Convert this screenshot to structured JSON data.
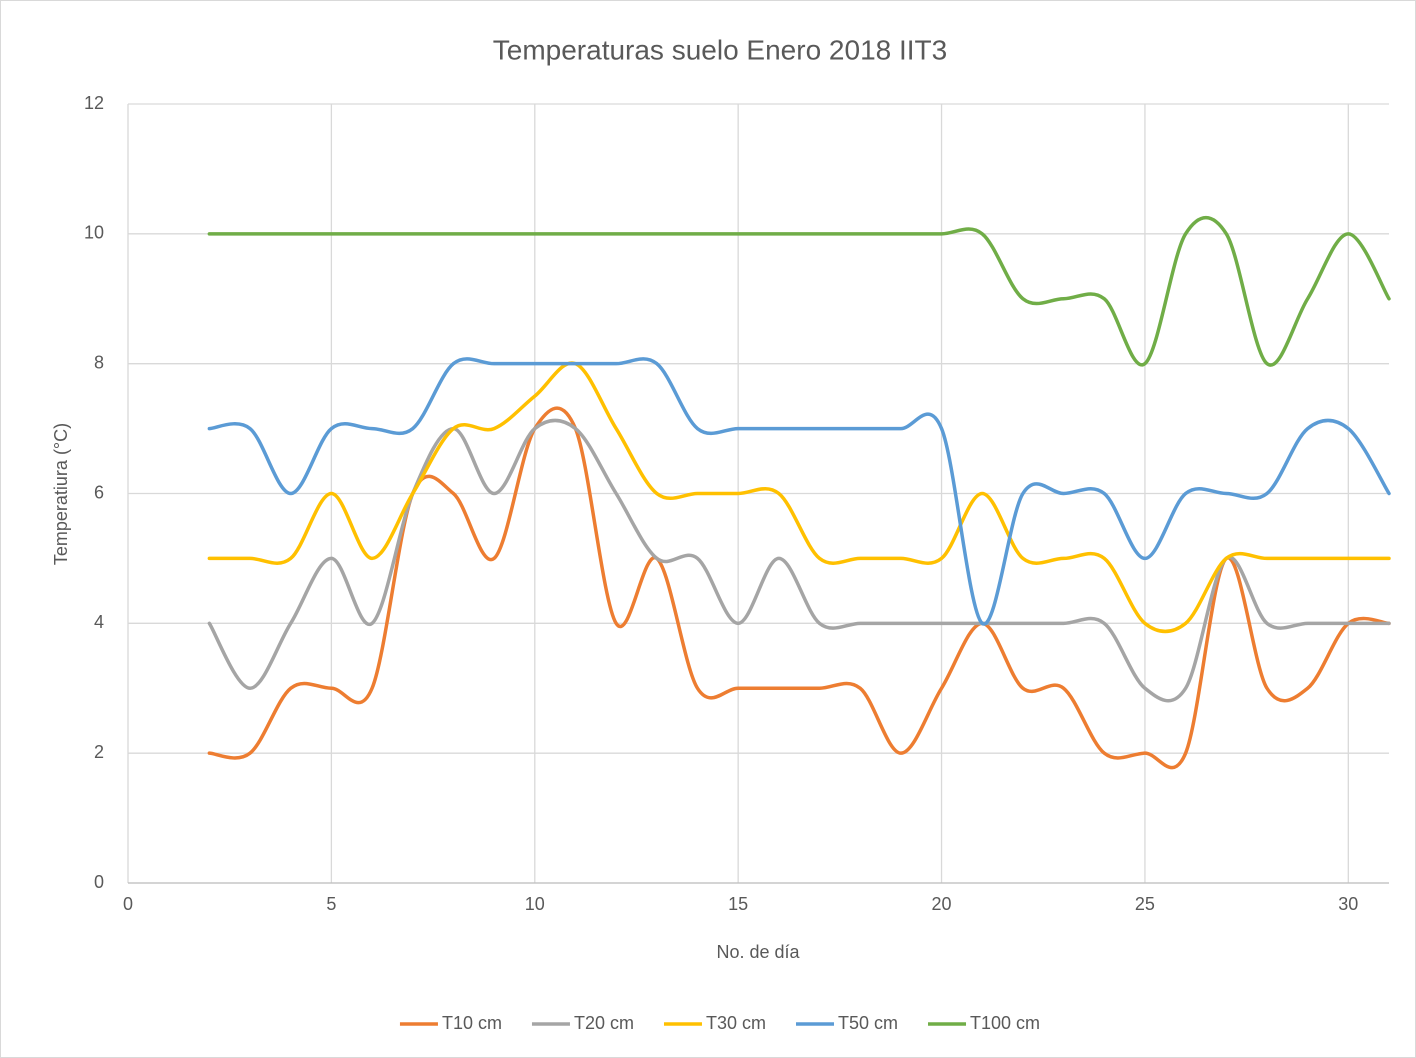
{
  "chart_data": {
    "type": "line",
    "title": "Temperaturas suelo Enero 2018 IIT3",
    "x_label": "No. de día",
    "y_label": "Temperatiura (°C)",
    "x": [
      2,
      3,
      4,
      5,
      6,
      7,
      8,
      9,
      10,
      11,
      12,
      13,
      14,
      15,
      16,
      17,
      18,
      19,
      20,
      21,
      22,
      23,
      24,
      25,
      26,
      27,
      28,
      29,
      30,
      31
    ],
    "series": [
      {
        "name": "T10 cm",
        "color": "#ed7d31",
        "values": [
          2,
          2,
          3,
          3,
          3,
          6,
          6,
          5,
          7,
          7,
          4,
          5,
          3,
          3,
          3,
          3,
          3,
          2,
          3,
          4,
          3,
          3,
          2,
          2,
          2,
          5,
          3,
          3,
          4,
          4
        ]
      },
      {
        "name": "T20 cm",
        "color": "#a5a5a5",
        "values": [
          4,
          3,
          4,
          5,
          4,
          6,
          7,
          6,
          7,
          7,
          6,
          5,
          5,
          4,
          5,
          4,
          4,
          4,
          4,
          4,
          4,
          4,
          4,
          3,
          3,
          5,
          4,
          4,
          4,
          4
        ]
      },
      {
        "name": "T30 cm",
        "color": "#ffc000",
        "values": [
          5,
          5,
          5,
          6,
          5,
          6,
          7,
          7,
          7.5,
          8,
          7,
          6,
          6,
          6,
          6,
          5,
          5,
          5,
          5,
          6,
          5,
          5,
          5,
          4,
          4,
          5,
          5,
          5,
          5,
          5
        ]
      },
      {
        "name": "T50 cm",
        "color": "#5b9bd5",
        "values": [
          7,
          7,
          6,
          7,
          7,
          7,
          8,
          8,
          8,
          8,
          8,
          8,
          7,
          7,
          7,
          7,
          7,
          7,
          7,
          4,
          6,
          6,
          6,
          5,
          6,
          6,
          6,
          7,
          7,
          6
        ]
      },
      {
        "name": "T100 cm",
        "color": "#70ad47",
        "values": [
          10,
          10,
          10,
          10,
          10,
          10,
          10,
          10,
          10,
          10,
          10,
          10,
          10,
          10,
          10,
          10,
          10,
          10,
          10,
          10,
          9,
          9,
          9,
          8,
          10,
          10,
          8,
          9,
          10,
          9
        ]
      }
    ],
    "xlim": [
      0,
      31
    ],
    "xticks": [
      0,
      5,
      10,
      15,
      20,
      25,
      30
    ],
    "ylim": [
      0,
      12
    ],
    "yticks": [
      0,
      2,
      4,
      6,
      8,
      10,
      12
    ],
    "grid": true,
    "smooth": true,
    "legend": "bottom"
  }
}
